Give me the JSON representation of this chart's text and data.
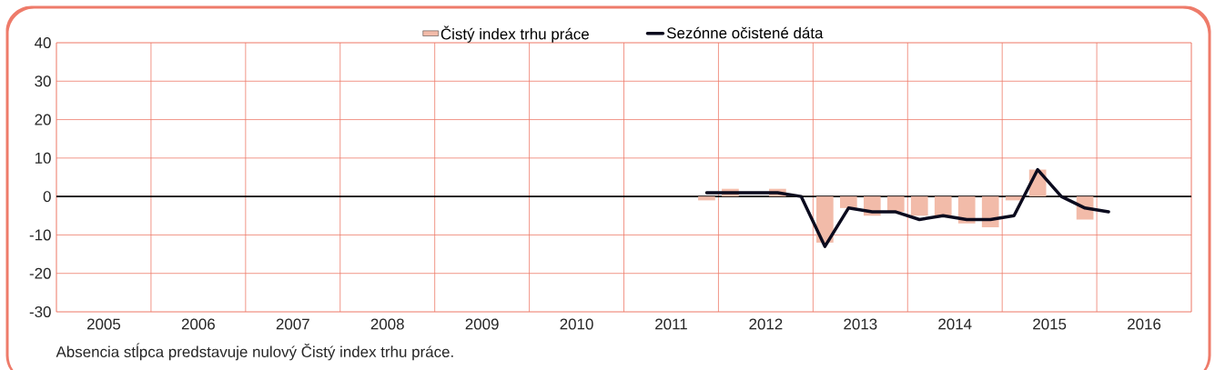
{
  "chart_data": {
    "type": "bar",
    "x": [
      2011.875,
      2012.125,
      2012.375,
      2012.625,
      2012.875,
      2013.125,
      2013.375,
      2013.625,
      2013.875,
      2014.125,
      2014.375,
      2014.625,
      2014.875,
      2015.125,
      2015.375,
      2015.625,
      2015.875,
      2016.125
    ],
    "series": [
      {
        "name": "Čistý index trhu práce",
        "color": "#f2bba9",
        "values": [
          -1,
          2,
          null,
          2,
          0,
          -12,
          -3,
          -5,
          -4,
          -5,
          -5,
          -7,
          -8,
          -1,
          7,
          0,
          -6,
          0
        ]
      },
      {
        "name": "Sezónne očistené dáta",
        "type": "line",
        "color": "#0b0b1e",
        "values": [
          1,
          1,
          1,
          1,
          0,
          -13,
          -3,
          -4,
          -4,
          -6,
          -5,
          -6,
          -6,
          -5,
          7,
          0,
          -3,
          -4
        ]
      }
    ],
    "xlim": [
      2005,
      2017
    ],
    "xticks": [
      {
        "value": 2005,
        "label": null
      },
      {
        "value": 2005.5,
        "label": "2005"
      },
      {
        "value": 2006,
        "label": null
      },
      {
        "value": 2006.5,
        "label": "2006"
      },
      {
        "value": 2007,
        "label": null
      },
      {
        "value": 2007.5,
        "label": "2007"
      },
      {
        "value": 2008,
        "label": null
      },
      {
        "value": 2008.5,
        "label": "2008"
      },
      {
        "value": 2009,
        "label": null
      },
      {
        "value": 2009.5,
        "label": "2009"
      },
      {
        "value": 2010,
        "label": null
      },
      {
        "value": 2010.5,
        "label": "2010"
      },
      {
        "value": 2011,
        "label": null
      },
      {
        "value": 2011.5,
        "label": "2011"
      },
      {
        "value": 2012,
        "label": null
      },
      {
        "value": 2012.5,
        "label": "2012"
      },
      {
        "value": 2013,
        "label": null
      },
      {
        "value": 2013.5,
        "label": "2013"
      },
      {
        "value": 2014,
        "label": null
      },
      {
        "value": 2014.5,
        "label": "2014"
      },
      {
        "value": 2015,
        "label": null
      },
      {
        "value": 2015.5,
        "label": "2015"
      },
      {
        "value": 2016,
        "label": null
      },
      {
        "value": 2016.5,
        "label": "2016"
      },
      {
        "value": 2017,
        "label": null
      }
    ],
    "ylim": [
      -30,
      40
    ],
    "yticks": [
      -30,
      -20,
      -10,
      0,
      10,
      20,
      30,
      40
    ],
    "grid": true,
    "legend": "top",
    "ref_lines": [
      {
        "axis": "y",
        "value": 0,
        "color": "#000000"
      }
    ],
    "annotations": [
      "Absencia stĺpca predstavuje nulový Čistý index trhu práce."
    ]
  }
}
